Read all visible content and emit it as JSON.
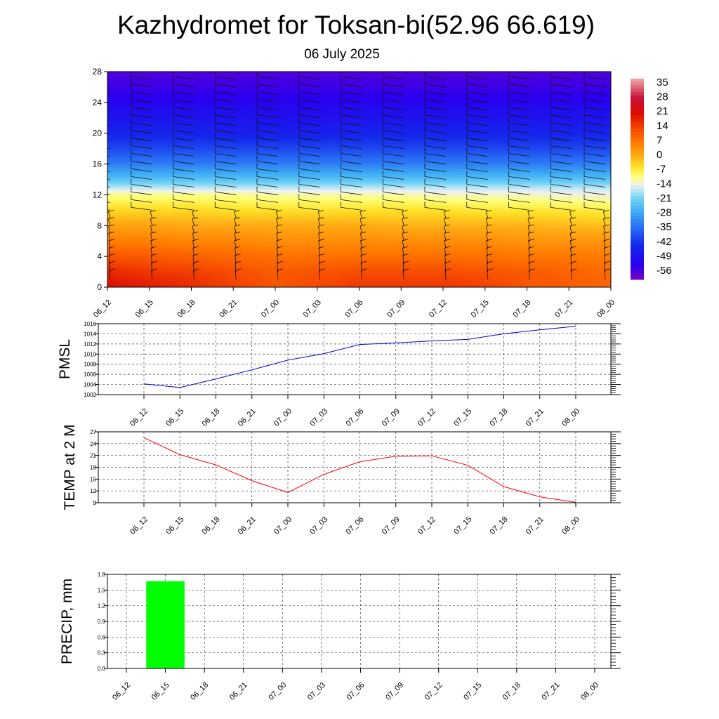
{
  "title": "Kazhydromet for Toksan-bi(52.96 66.619)",
  "subtitle": "06 July 2025",
  "time_ticks": [
    "06_12",
    "06_15",
    "06_18",
    "06_21",
    "07_00",
    "07_03",
    "07_06",
    "07_09",
    "07_12",
    "07_15",
    "07_18",
    "07_21",
    "08_00"
  ],
  "chart_data": [
    {
      "type": "heatmap",
      "name": "temperature-height-crosssection",
      "ylim": [
        0,
        28
      ],
      "yticks": [
        "0",
        "4",
        "8",
        "12",
        "16",
        "20",
        "24",
        "28"
      ],
      "x": [
        "06_12",
        "06_15",
        "06_18",
        "06_21",
        "07_00",
        "07_03",
        "07_06",
        "07_09",
        "07_12",
        "07_15",
        "07_18",
        "07_21",
        "08_00"
      ],
      "levels": [
        0,
        2,
        4,
        6,
        8,
        10,
        12,
        13,
        14,
        16,
        18,
        20,
        22,
        24,
        26,
        28
      ],
      "values_by_level": [
        [
          24,
          22,
          20,
          17,
          14,
          16,
          18,
          18,
          18,
          17,
          14,
          13,
          12
        ],
        [
          20,
          18,
          17,
          15,
          13,
          14,
          15,
          15,
          15,
          14,
          13,
          12,
          11
        ],
        [
          14,
          13,
          12,
          11,
          10,
          10,
          10,
          10,
          10,
          10,
          9,
          9,
          8
        ],
        [
          8,
          8,
          7,
          7,
          6,
          6,
          6,
          6,
          6,
          6,
          5,
          5,
          5
        ],
        [
          3,
          3,
          2,
          2,
          2,
          2,
          2,
          1,
          1,
          1,
          1,
          0,
          0
        ],
        [
          -3,
          -3,
          -3,
          -4,
          -4,
          -4,
          -4,
          -4,
          -4,
          -5,
          -5,
          -5,
          -6
        ],
        [
          -10,
          -10,
          -10,
          -10,
          -11,
          -11,
          -11,
          -11,
          -12,
          -12,
          -12,
          -13,
          -13
        ],
        [
          -17,
          -17,
          -17,
          -17,
          -17,
          -17,
          -17,
          -17,
          -17,
          -17,
          -17,
          -17,
          -17
        ],
        [
          -24,
          -24,
          -24,
          -24,
          -24,
          -24,
          -24,
          -24,
          -24,
          -24,
          -24,
          -24,
          -24
        ],
        [
          -34,
          -34,
          -34,
          -34,
          -34,
          -34,
          -34,
          -34,
          -34,
          -34,
          -34,
          -34,
          -34
        ],
        [
          -41,
          -41,
          -41,
          -41,
          -41,
          -41,
          -41,
          -41,
          -41,
          -41,
          -41,
          -41,
          -41
        ],
        [
          -46,
          -46,
          -46,
          -47,
          -47,
          -47,
          -46,
          -46,
          -46,
          -46,
          -46,
          -46,
          -46
        ],
        [
          -50,
          -50,
          -50,
          -50,
          -51,
          -51,
          -50,
          -50,
          -50,
          -50,
          -50,
          -50,
          -50
        ],
        [
          -54,
          -54,
          -54,
          -54,
          -54,
          -54,
          -54,
          -54,
          -54,
          -54,
          -54,
          -54,
          -54
        ],
        [
          -57,
          -57,
          -57,
          -57,
          -57,
          -57,
          -57,
          -57,
          -57,
          -57,
          -57,
          -57,
          -57
        ],
        [
          -59,
          -59,
          -59,
          -59,
          -59,
          -59,
          -59,
          -59,
          -59,
          -59,
          -59,
          -59,
          -59
        ]
      ],
      "colorbar": {
        "labels": [
          "35",
          "28",
          "21",
          "14",
          "7",
          "0",
          "-7",
          "-14",
          "-21",
          "-28",
          "-35",
          "-42",
          "-49",
          "-56"
        ],
        "range": [
          -63,
          42
        ]
      },
      "wind_barbs": true
    },
    {
      "type": "line",
      "name": "pmsl",
      "ylabel": "PMSL",
      "ylim": [
        1002,
        1016
      ],
      "yticks": [
        "1002",
        "1004",
        "1006",
        "1008",
        "1010",
        "1012",
        "1014",
        "1016"
      ],
      "x": [
        "06_12",
        "06_15",
        "06_18",
        "06_21",
        "07_00",
        "07_03",
        "07_06",
        "07_09",
        "07_12",
        "07_15",
        "07_18",
        "07_21",
        "08_00"
      ],
      "series": [
        {
          "values": [
            1004.1,
            1003.4,
            1005.1,
            1006.9,
            1008.8,
            1010.1,
            1011.9,
            1012.2,
            1012.6,
            1012.9,
            1014.0,
            1014.8,
            1015.5
          ]
        }
      ],
      "color": "#0000cc",
      "grid": true
    },
    {
      "type": "line",
      "name": "temp-2m",
      "ylabel": "TEMP at 2 M",
      "ylim": [
        9,
        27
      ],
      "yticks": [
        "9",
        "12",
        "15",
        "18",
        "21",
        "24",
        "27"
      ],
      "x": [
        "06_12",
        "06_15",
        "06_18",
        "06_21",
        "07_00",
        "07_03",
        "07_06",
        "07_09",
        "07_12",
        "07_15",
        "07_18",
        "07_21",
        "08_00"
      ],
      "series": [
        {
          "values": [
            25.5,
            21.2,
            18.6,
            14.6,
            11.6,
            16.2,
            19.4,
            20.8,
            20.9,
            18.5,
            13.1,
            10.5,
            9.1
          ]
        }
      ],
      "color": "#ff0000",
      "grid": true
    },
    {
      "type": "bar",
      "name": "precip",
      "ylabel": "PRECIP, mm",
      "ylim": [
        0,
        1.8
      ],
      "yticks": [
        "0.0",
        "0.3",
        "0.6",
        "0.9",
        "1.2",
        "1.5",
        "1.8"
      ],
      "categories": [
        "06_12",
        "06_15",
        "06_18",
        "06_21",
        "07_00",
        "07_03",
        "07_06",
        "07_09",
        "07_12",
        "07_15",
        "07_18",
        "07_21",
        "08_00"
      ],
      "values": [
        0,
        1.67,
        0,
        0,
        0,
        0,
        0,
        0,
        0,
        0,
        0,
        0,
        0
      ],
      "color": "#00ff00",
      "grid": true
    }
  ]
}
